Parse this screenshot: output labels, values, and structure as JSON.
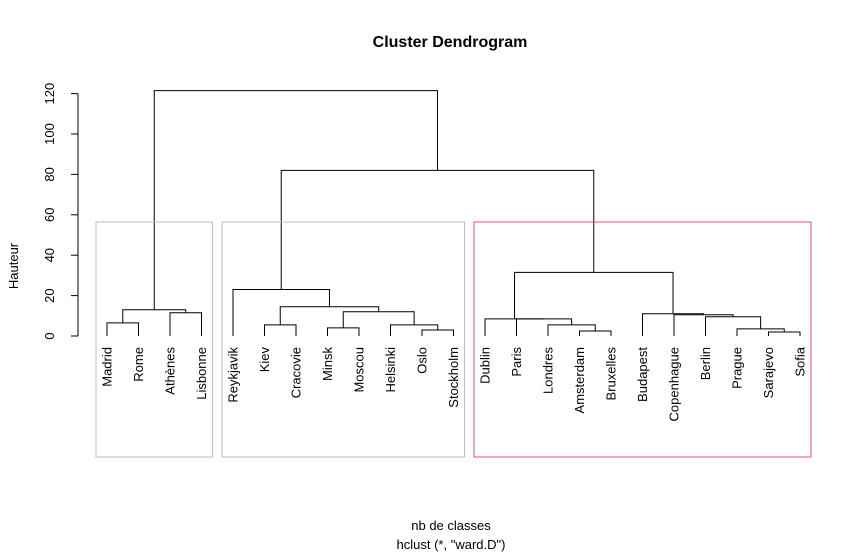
{
  "chart_data": {
    "type": "dendrogram",
    "title": "Cluster Dendrogram",
    "ylabel": "Hauteur",
    "xlabel": "nb de classes",
    "sub": "hclust (*, \"ward.D\")",
    "ylim": [
      0,
      125
    ],
    "yticks": [
      0,
      20,
      40,
      60,
      80,
      100,
      120
    ],
    "leaves": [
      "Madrid",
      "Rome",
      "Athènes",
      "Lisbonne",
      "Reykjavik",
      "Kiev",
      "Cracovie",
      "Minsk",
      "Moscou",
      "Helsinki",
      "Oslo",
      "Stockholm",
      "Dublin",
      "Paris",
      "Londres",
      "Amsterdam",
      "Bruxelles",
      "Budapest",
      "Copenhague",
      "Berlin",
      "Prague",
      "Sarajevo",
      "Sofia"
    ],
    "merges": [
      {
        "left": "Madrid",
        "right": "Rome",
        "height": 6.5
      },
      {
        "left": "Athènes",
        "right": "Lisbonne",
        "height": 11.5
      },
      {
        "left": 1,
        "right": 2,
        "height": 13.0
      },
      {
        "left": "Minsk",
        "right": "Moscou",
        "height": 4.0
      },
      {
        "left": "Oslo",
        "right": "Stockholm",
        "height": 3.0
      },
      {
        "left": "Helsinki",
        "right": 5,
        "height": 5.5
      },
      {
        "left": 4,
        "right": 6,
        "height": 12.0
      },
      {
        "left": "Kiev",
        "right": "Cracovie",
        "height": 5.5
      },
      {
        "left": 8,
        "right": 7,
        "height": 14.5
      },
      {
        "left": "Reykjavik",
        "right": 9,
        "height": 23.0
      },
      {
        "left": "Amsterdam",
        "right": "Bruxelles",
        "height": 2.5
      },
      {
        "left": "Londres",
        "right": 11,
        "height": 5.5
      },
      {
        "left": "Paris",
        "right": 12,
        "height": 8.5
      },
      {
        "left": "Dublin",
        "right": 13,
        "height": 8.5
      },
      {
        "left": "Sarajevo",
        "right": "Sofia",
        "height": 2.0
      },
      {
        "left": "Prague",
        "right": 15,
        "height": 3.5
      },
      {
        "left": "Berlin",
        "right": 16,
        "height": 9.5
      },
      {
        "left": "Copenhague",
        "right": 17,
        "height": 10.5
      },
      {
        "left": "Budapest",
        "right": 18,
        "height": 11.0
      },
      {
        "left": 14,
        "right": 19,
        "height": 31.5
      },
      {
        "left": 10,
        "right": 20,
        "height": 82.0
      },
      {
        "left": 3,
        "right": 21,
        "height": 121.5
      }
    ],
    "cluster_boxes": [
      {
        "from": "Madrid",
        "to": "Lisbonne",
        "color": "#BEBEBE"
      },
      {
        "from": "Reykjavik",
        "to": "Stockholm",
        "color": "#BEBEBE"
      },
      {
        "from": "Dublin",
        "to": "Sofia",
        "color": "#DF536B"
      }
    ],
    "line_color": "#000000"
  }
}
